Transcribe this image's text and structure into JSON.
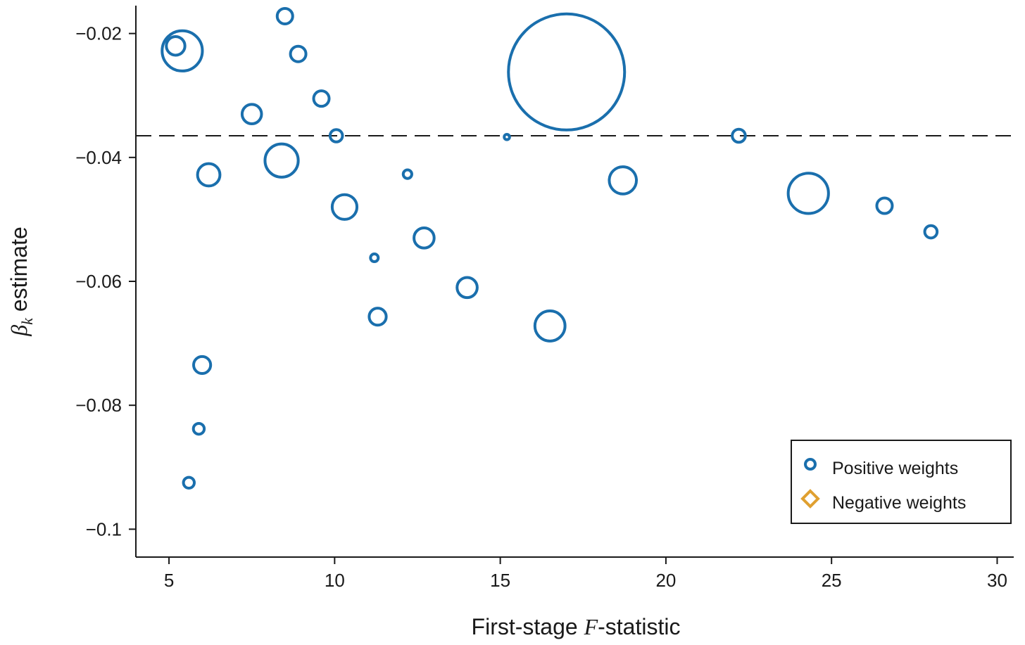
{
  "chart_data": {
    "type": "scatter",
    "xlabel_parts": [
      "First-stage ",
      "F",
      "-statistic"
    ],
    "ylabel_parts": [
      "β",
      "k",
      " estimate"
    ],
    "xlim": [
      4.0,
      30.5
    ],
    "ylim": [
      -0.1045,
      -0.0155
    ],
    "xticks": [
      5,
      10,
      15,
      20,
      25,
      30
    ],
    "xtick_labels": [
      "5",
      "10",
      "15",
      "20",
      "25",
      "30"
    ],
    "yticks": [
      -0.02,
      -0.04,
      -0.06,
      -0.08,
      -0.1
    ],
    "ytick_labels": [
      "−0.02",
      "−0.04",
      "−0.06",
      "−0.08",
      "−0.1"
    ],
    "reference_line": {
      "y": -0.0365,
      "style": "dashed"
    },
    "grid": false,
    "legend": {
      "position": "bottom-right",
      "entries": [
        {
          "label": "Positive weights",
          "marker": "circle",
          "color": "#1a6fad"
        },
        {
          "label": "Negative weights",
          "marker": "diamond",
          "color": "#e0a030"
        }
      ]
    },
    "series": [
      {
        "name": "Positive weights",
        "color": "#1a6fad",
        "marker": "circle",
        "points": [
          {
            "x": 5.2,
            "y": -0.022,
            "weight": 1.2
          },
          {
            "x": 5.4,
            "y": -0.0228,
            "weight": 2.6
          },
          {
            "x": 8.5,
            "y": -0.0172,
            "weight": 1.0
          },
          {
            "x": 8.9,
            "y": -0.0233,
            "weight": 1.0
          },
          {
            "x": 9.6,
            "y": -0.0305,
            "weight": 1.0
          },
          {
            "x": 7.5,
            "y": -0.033,
            "weight": 1.25
          },
          {
            "x": 10.05,
            "y": -0.0365,
            "weight": 0.8
          },
          {
            "x": 8.4,
            "y": -0.0405,
            "weight": 2.15
          },
          {
            "x": 6.2,
            "y": -0.0428,
            "weight": 1.45
          },
          {
            "x": 10.3,
            "y": -0.048,
            "weight": 1.6
          },
          {
            "x": 12.2,
            "y": -0.0427,
            "weight": 0.55
          },
          {
            "x": 15.2,
            "y": -0.0367,
            "weight": 0.35
          },
          {
            "x": 17.0,
            "y": -0.0262,
            "weight": 7.5
          },
          {
            "x": 18.7,
            "y": -0.0437,
            "weight": 1.75
          },
          {
            "x": 22.2,
            "y": -0.0365,
            "weight": 0.85
          },
          {
            "x": 24.3,
            "y": -0.0458,
            "weight": 2.6
          },
          {
            "x": 26.6,
            "y": -0.0478,
            "weight": 1.0
          },
          {
            "x": 28.0,
            "y": -0.052,
            "weight": 0.8
          },
          {
            "x": 12.7,
            "y": -0.053,
            "weight": 1.3
          },
          {
            "x": 11.2,
            "y": -0.0562,
            "weight": 0.5
          },
          {
            "x": 14.0,
            "y": -0.061,
            "weight": 1.3
          },
          {
            "x": 11.3,
            "y": -0.0657,
            "weight": 1.1
          },
          {
            "x": 16.5,
            "y": -0.0672,
            "weight": 1.95
          },
          {
            "x": 6.0,
            "y": -0.0735,
            "weight": 1.1
          },
          {
            "x": 5.9,
            "y": -0.0838,
            "weight": 0.7
          },
          {
            "x": 5.6,
            "y": -0.0925,
            "weight": 0.7
          }
        ]
      }
    ]
  }
}
